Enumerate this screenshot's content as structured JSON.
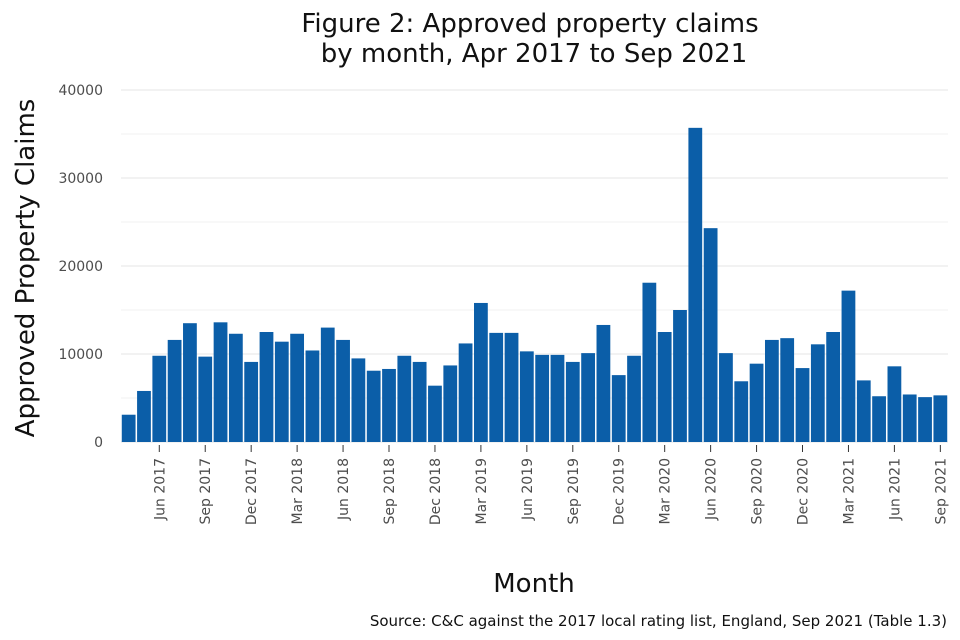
{
  "chart_data": {
    "type": "bar",
    "title_line1": "Figure 2: Approved property claims",
    "title_line2": "by month, Apr 2017 to Sep 2021",
    "xlabel": "Month",
    "ylabel": "Approved Property Claims",
    "source": "Source: C&C against the 2017 local rating list, England, Sep 2021 (Table 1.3)",
    "ylim": [
      0,
      40000
    ],
    "yticks": [
      0,
      10000,
      20000,
      30000,
      40000
    ],
    "ytick_labels": [
      "0",
      "10000",
      "20000",
      "30000",
      "40000"
    ],
    "bar_color": "#0b5ea8",
    "grid": true,
    "categories": [
      "Apr 2017",
      "May 2017",
      "Jun 2017",
      "Jul 2017",
      "Aug 2017",
      "Sep 2017",
      "Oct 2017",
      "Nov 2017",
      "Dec 2017",
      "Jan 2018",
      "Feb 2018",
      "Mar 2018",
      "Apr 2018",
      "May 2018",
      "Jun 2018",
      "Jul 2018",
      "Aug 2018",
      "Sep 2018",
      "Oct 2018",
      "Nov 2018",
      "Dec 2018",
      "Jan 2019",
      "Feb 2019",
      "Mar 2019",
      "Apr 2019",
      "May 2019",
      "Jun 2019",
      "Jul 2019",
      "Aug 2019",
      "Sep 2019",
      "Oct 2019",
      "Nov 2019",
      "Dec 2019",
      "Jan 2020",
      "Feb 2020",
      "Mar 2020",
      "Apr 2020",
      "May 2020",
      "Jun 2020",
      "Jul 2020",
      "Aug 2020",
      "Sep 2020",
      "Oct 2020",
      "Nov 2020",
      "Dec 2020",
      "Jan 2021",
      "Feb 2021",
      "Mar 2021",
      "Apr 2021",
      "May 2021",
      "Jun 2021",
      "Jul 2021",
      "Aug 2021",
      "Sep 2021"
    ],
    "values": [
      3100,
      5800,
      9800,
      11600,
      13500,
      9700,
      13600,
      12300,
      9100,
      12500,
      11400,
      12300,
      10400,
      13000,
      11600,
      9500,
      8100,
      8300,
      9800,
      9100,
      6400,
      8700,
      11200,
      15800,
      12400,
      12400,
      10300,
      9900,
      9900,
      9100,
      10100,
      13300,
      7600,
      9800,
      18100,
      12500,
      15000,
      35700,
      24300,
      10100,
      6900,
      8900,
      11600,
      11800,
      8400,
      11100,
      12500,
      17200,
      7000,
      5200,
      8600,
      5400,
      5100,
      5300
    ],
    "xtick_labels": [
      "Jun 2017",
      "Sep 2017",
      "Dec 2017",
      "Mar 2018",
      "Jun 2018",
      "Sep 2018",
      "Dec 2018",
      "Mar 2019",
      "Jun 2019",
      "Sep 2019",
      "Dec 2019",
      "Mar 2020",
      "Jun 2020",
      "Sep 2020",
      "Dec 2020",
      "Mar 2021",
      "Jun 2021",
      "Sep 2021"
    ],
    "xtick_indices": [
      2,
      5,
      8,
      11,
      14,
      17,
      20,
      23,
      26,
      29,
      32,
      35,
      38,
      41,
      44,
      47,
      50,
      53
    ]
  }
}
